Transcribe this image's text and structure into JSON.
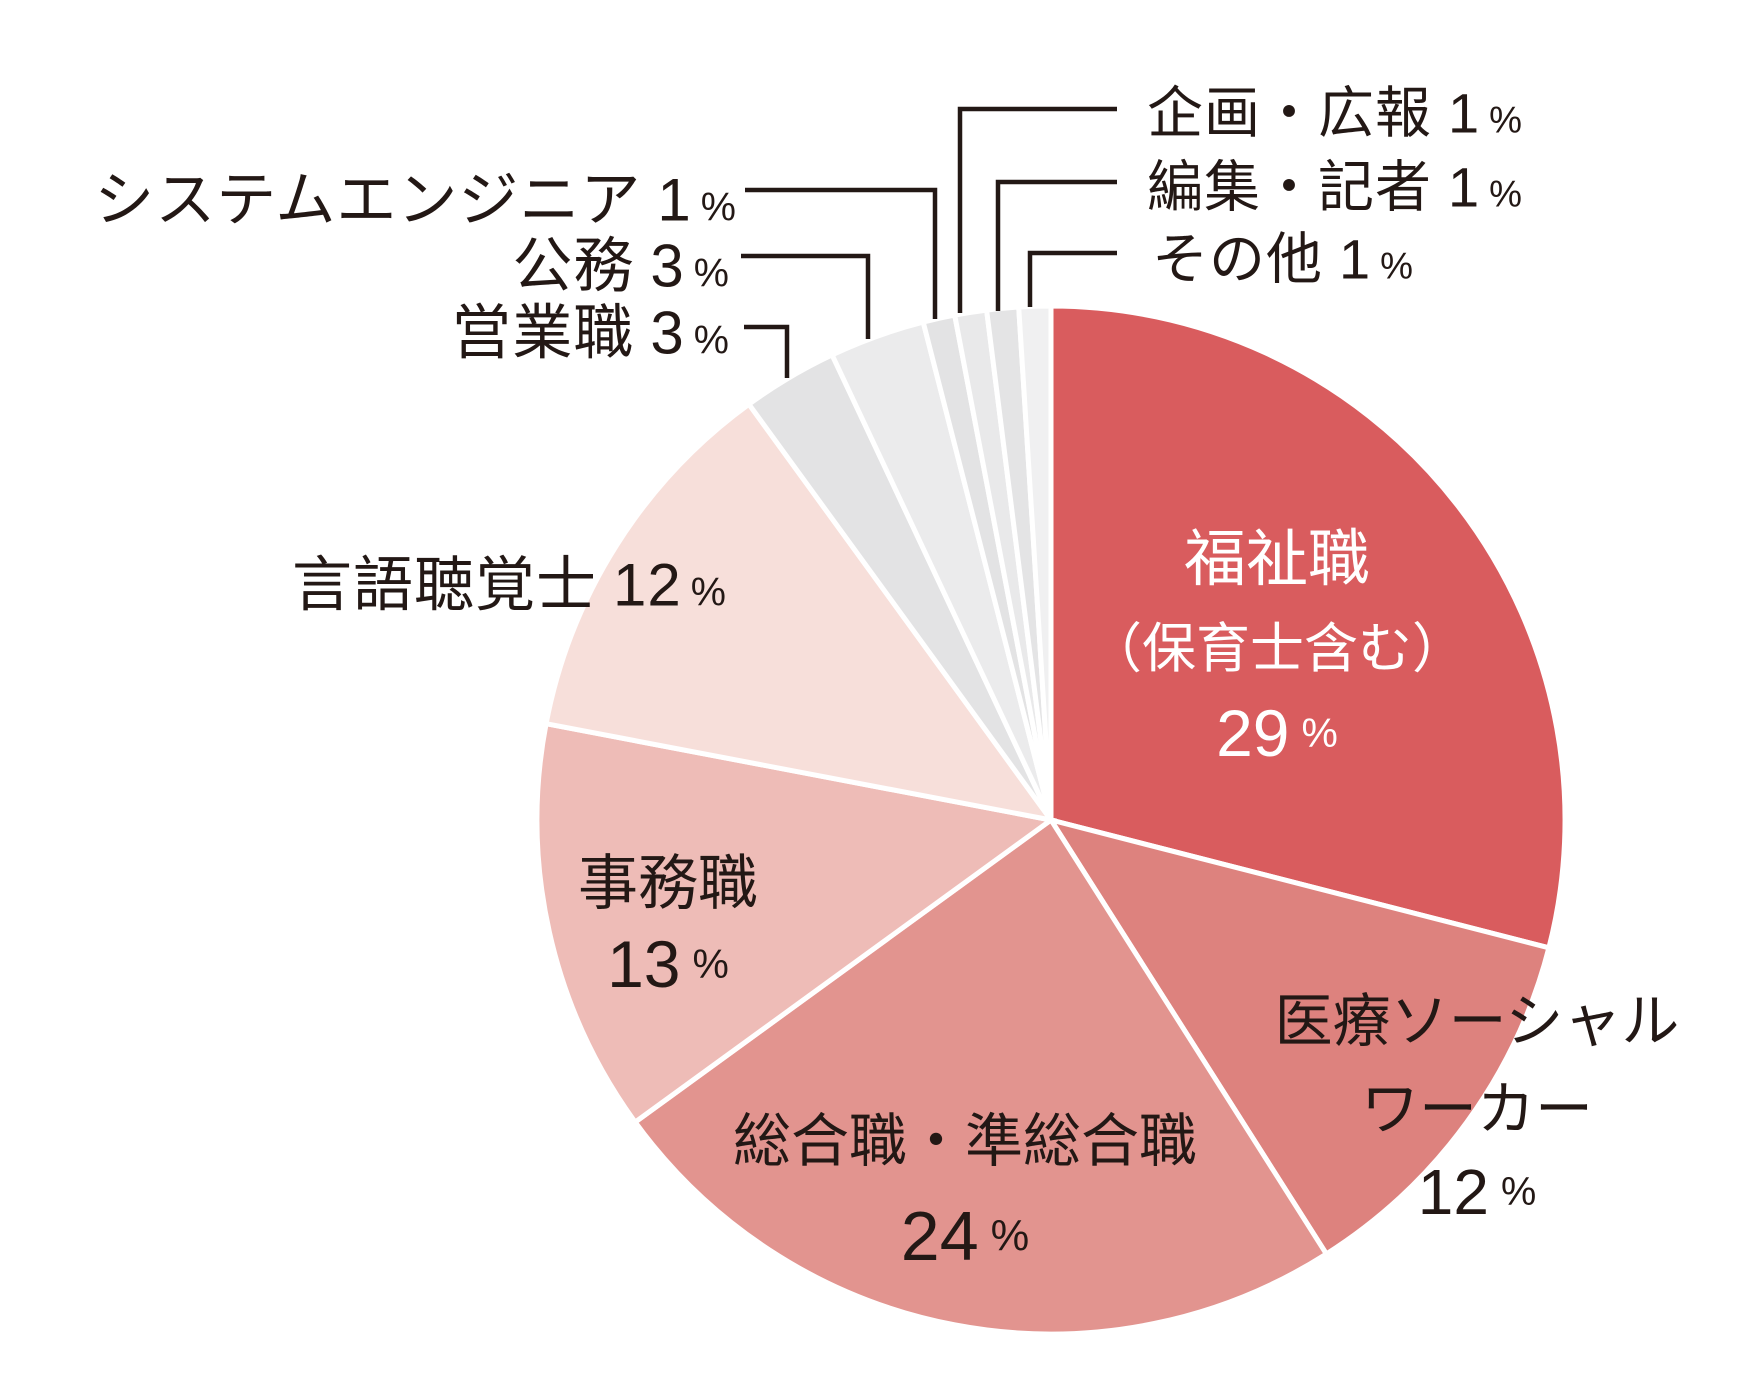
{
  "chart_data": {
    "type": "pie",
    "title": "",
    "unit": "%",
    "start_angle_deg": -90,
    "direction": "clockwise",
    "background": "#ffffff",
    "separator_color": "#ffffff",
    "leader_line_color": "#231815",
    "text_color": "#231815",
    "slices": [
      {
        "label": "福祉職（保育士含む）",
        "lines": [
          "福祉職",
          "（保育士含む）"
        ],
        "value": 29,
        "value_text": "29",
        "color": "#d95c5e",
        "label_color": "#ffffff",
        "placement": "inside"
      },
      {
        "label": "医療ソーシャルワーカー",
        "lines": [
          "医療ソーシャル",
          "ワーカー"
        ],
        "value": 12,
        "value_text": "12",
        "color": "#dd827e",
        "label_color": "#231815",
        "placement": "inside"
      },
      {
        "label": "総合職・準総合職",
        "lines": [
          "総合職・準総合職"
        ],
        "value": 24,
        "value_text": "24",
        "color": "#e2948f",
        "label_color": "#231815",
        "placement": "inside"
      },
      {
        "label": "事務職",
        "lines": [
          "事務職"
        ],
        "value": 13,
        "value_text": "13",
        "color": "#eebcb7",
        "label_color": "#231815",
        "placement": "inside"
      },
      {
        "label": "言語聴覚士",
        "lines": [
          "言語聴覚士"
        ],
        "value": 12,
        "value_text": "12",
        "color": "#f7dfda",
        "label_color": "#231815",
        "placement": "outside-left"
      },
      {
        "label": "営業職",
        "lines": [
          "営業職"
        ],
        "value": 3,
        "value_text": "3",
        "color": "#e3e3e4",
        "label_color": "#231815",
        "placement": "outside-left-leader"
      },
      {
        "label": "公務",
        "lines": [
          "公務"
        ],
        "value": 3,
        "value_text": "3",
        "color": "#ebebec",
        "label_color": "#231815",
        "placement": "outside-left-leader"
      },
      {
        "label": "システムエンジニア",
        "lines": [
          "システムエンジニア"
        ],
        "value": 1,
        "value_text": "1",
        "color": "#e3e3e4",
        "label_color": "#231815",
        "placement": "outside-left-leader"
      },
      {
        "label": "企画・広報",
        "lines": [
          "企画・広報"
        ],
        "value": 1,
        "value_text": "1",
        "color": "#e9e9ea",
        "label_color": "#231815",
        "placement": "outside-right-leader"
      },
      {
        "label": "編集・記者",
        "lines": [
          "編集・記者"
        ],
        "value": 1,
        "value_text": "1",
        "color": "#e4e4e5",
        "label_color": "#231815",
        "placement": "outside-right-leader"
      },
      {
        "label": "その他",
        "lines": [
          "その他"
        ],
        "value": 1,
        "value_text": "1",
        "color": "#f0f0f1",
        "label_color": "#231815",
        "placement": "outside-right-leader"
      }
    ]
  }
}
